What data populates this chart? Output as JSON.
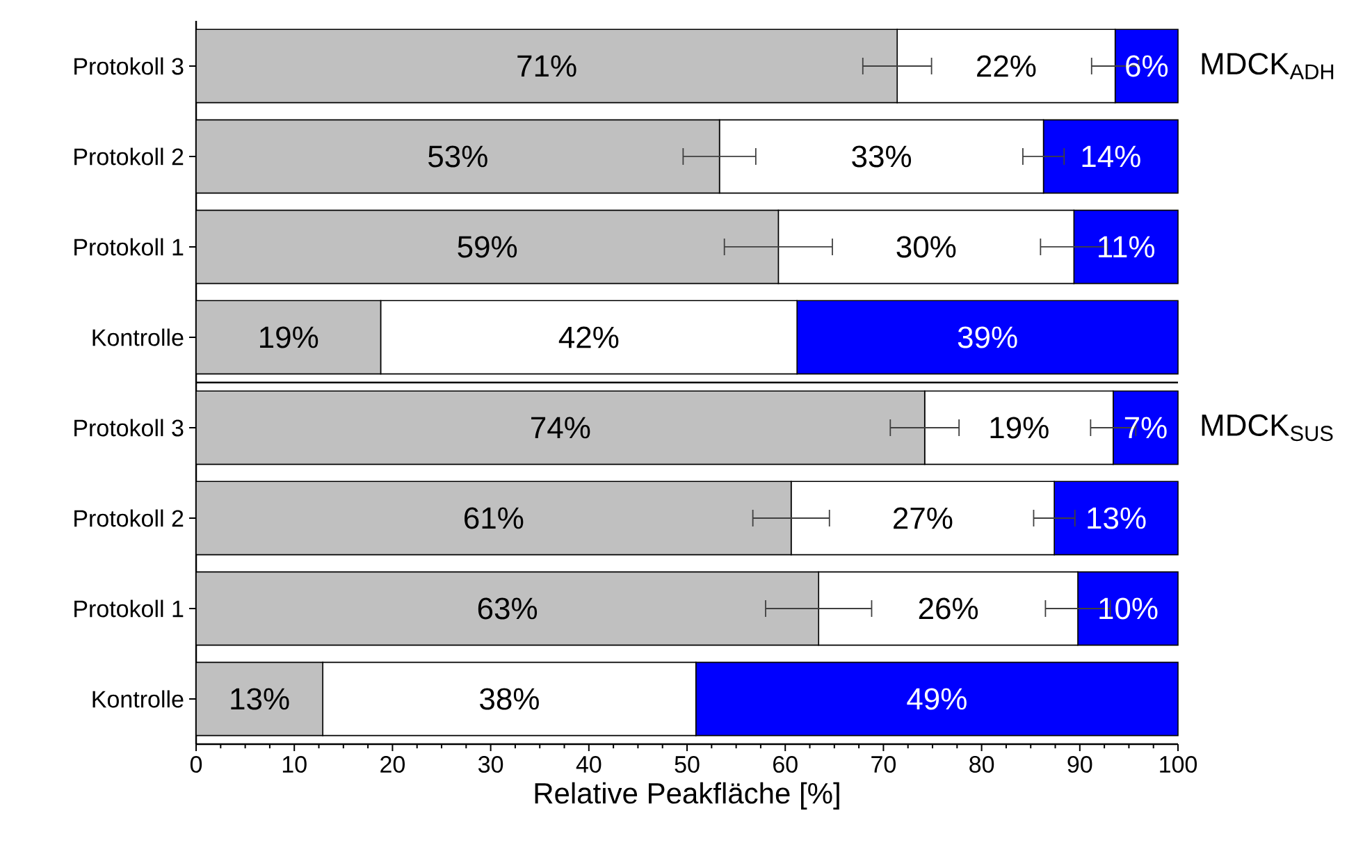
{
  "chart_data": [
    {
      "type": "bar",
      "orientation": "horizontal",
      "stacked": true,
      "annotations": [
        "MDCK$_{ADH}$"
      ],
      "categories": [
        "Protokoll 3",
        "Protokoll 2",
        "Protokoll 1",
        "Kontrolle"
      ],
      "xlim": [
        0,
        100
      ],
      "tick_labels": "y",
      "series": [
        {
          "color": "#c0c0c0",
          "values": [
            71.4,
            53.3,
            59.3,
            18.8
          ],
          "errors": [
            3.5,
            3.7,
            5.5,
            null
          ],
          "value_labels": [
            "71%",
            "53%",
            "59%",
            "19%"
          ]
        },
        {
          "color": "#ffffff",
          "values": [
            22.2,
            33.0,
            30.1,
            42.4
          ],
          "errors": [
            2.4,
            2.1,
            3.4,
            null
          ],
          "value_labels": [
            "22%",
            "33%",
            "30%",
            "42%"
          ]
        },
        {
          "color": "#0000ff",
          "values": [
            6.4,
            13.7,
            10.6,
            38.8
          ],
          "value_labels": [
            "6%",
            "14%",
            "11%",
            "39%"
          ]
        }
      ]
    },
    {
      "type": "bar",
      "orientation": "horizontal",
      "stacked": true,
      "annotations": [
        "MDCK$_{SUS}$"
      ],
      "categories": [
        "Protokoll 3",
        "Protokoll 2",
        "Protokoll 1",
        "Kontrolle"
      ],
      "xlim": [
        0,
        100
      ],
      "xticks": [
        0,
        10,
        20,
        30,
        40,
        50,
        60,
        70,
        80,
        90,
        100
      ],
      "xlabel": "Relative Peakfläche [%]",
      "series": [
        {
          "color": "#c0c0c0",
          "values": [
            74.2,
            60.6,
            63.4,
            12.9
          ],
          "errors": [
            3.5,
            3.9,
            5.4,
            null
          ],
          "value_labels": [
            "74%",
            "61%",
            "63%",
            "13%"
          ]
        },
        {
          "color": "#ffffff",
          "values": [
            19.2,
            26.8,
            26.4,
            38.0
          ],
          "errors": [
            2.3,
            2.1,
            3.3,
            null
          ],
          "value_labels": [
            "19%",
            "27%",
            "26%",
            "38%"
          ]
        },
        {
          "color": "#0000ff",
          "values": [
            6.6,
            12.6,
            10.2,
            49.1
          ],
          "value_labels": [
            "7%",
            "13%",
            "10%",
            "49%"
          ]
        }
      ]
    }
  ]
}
